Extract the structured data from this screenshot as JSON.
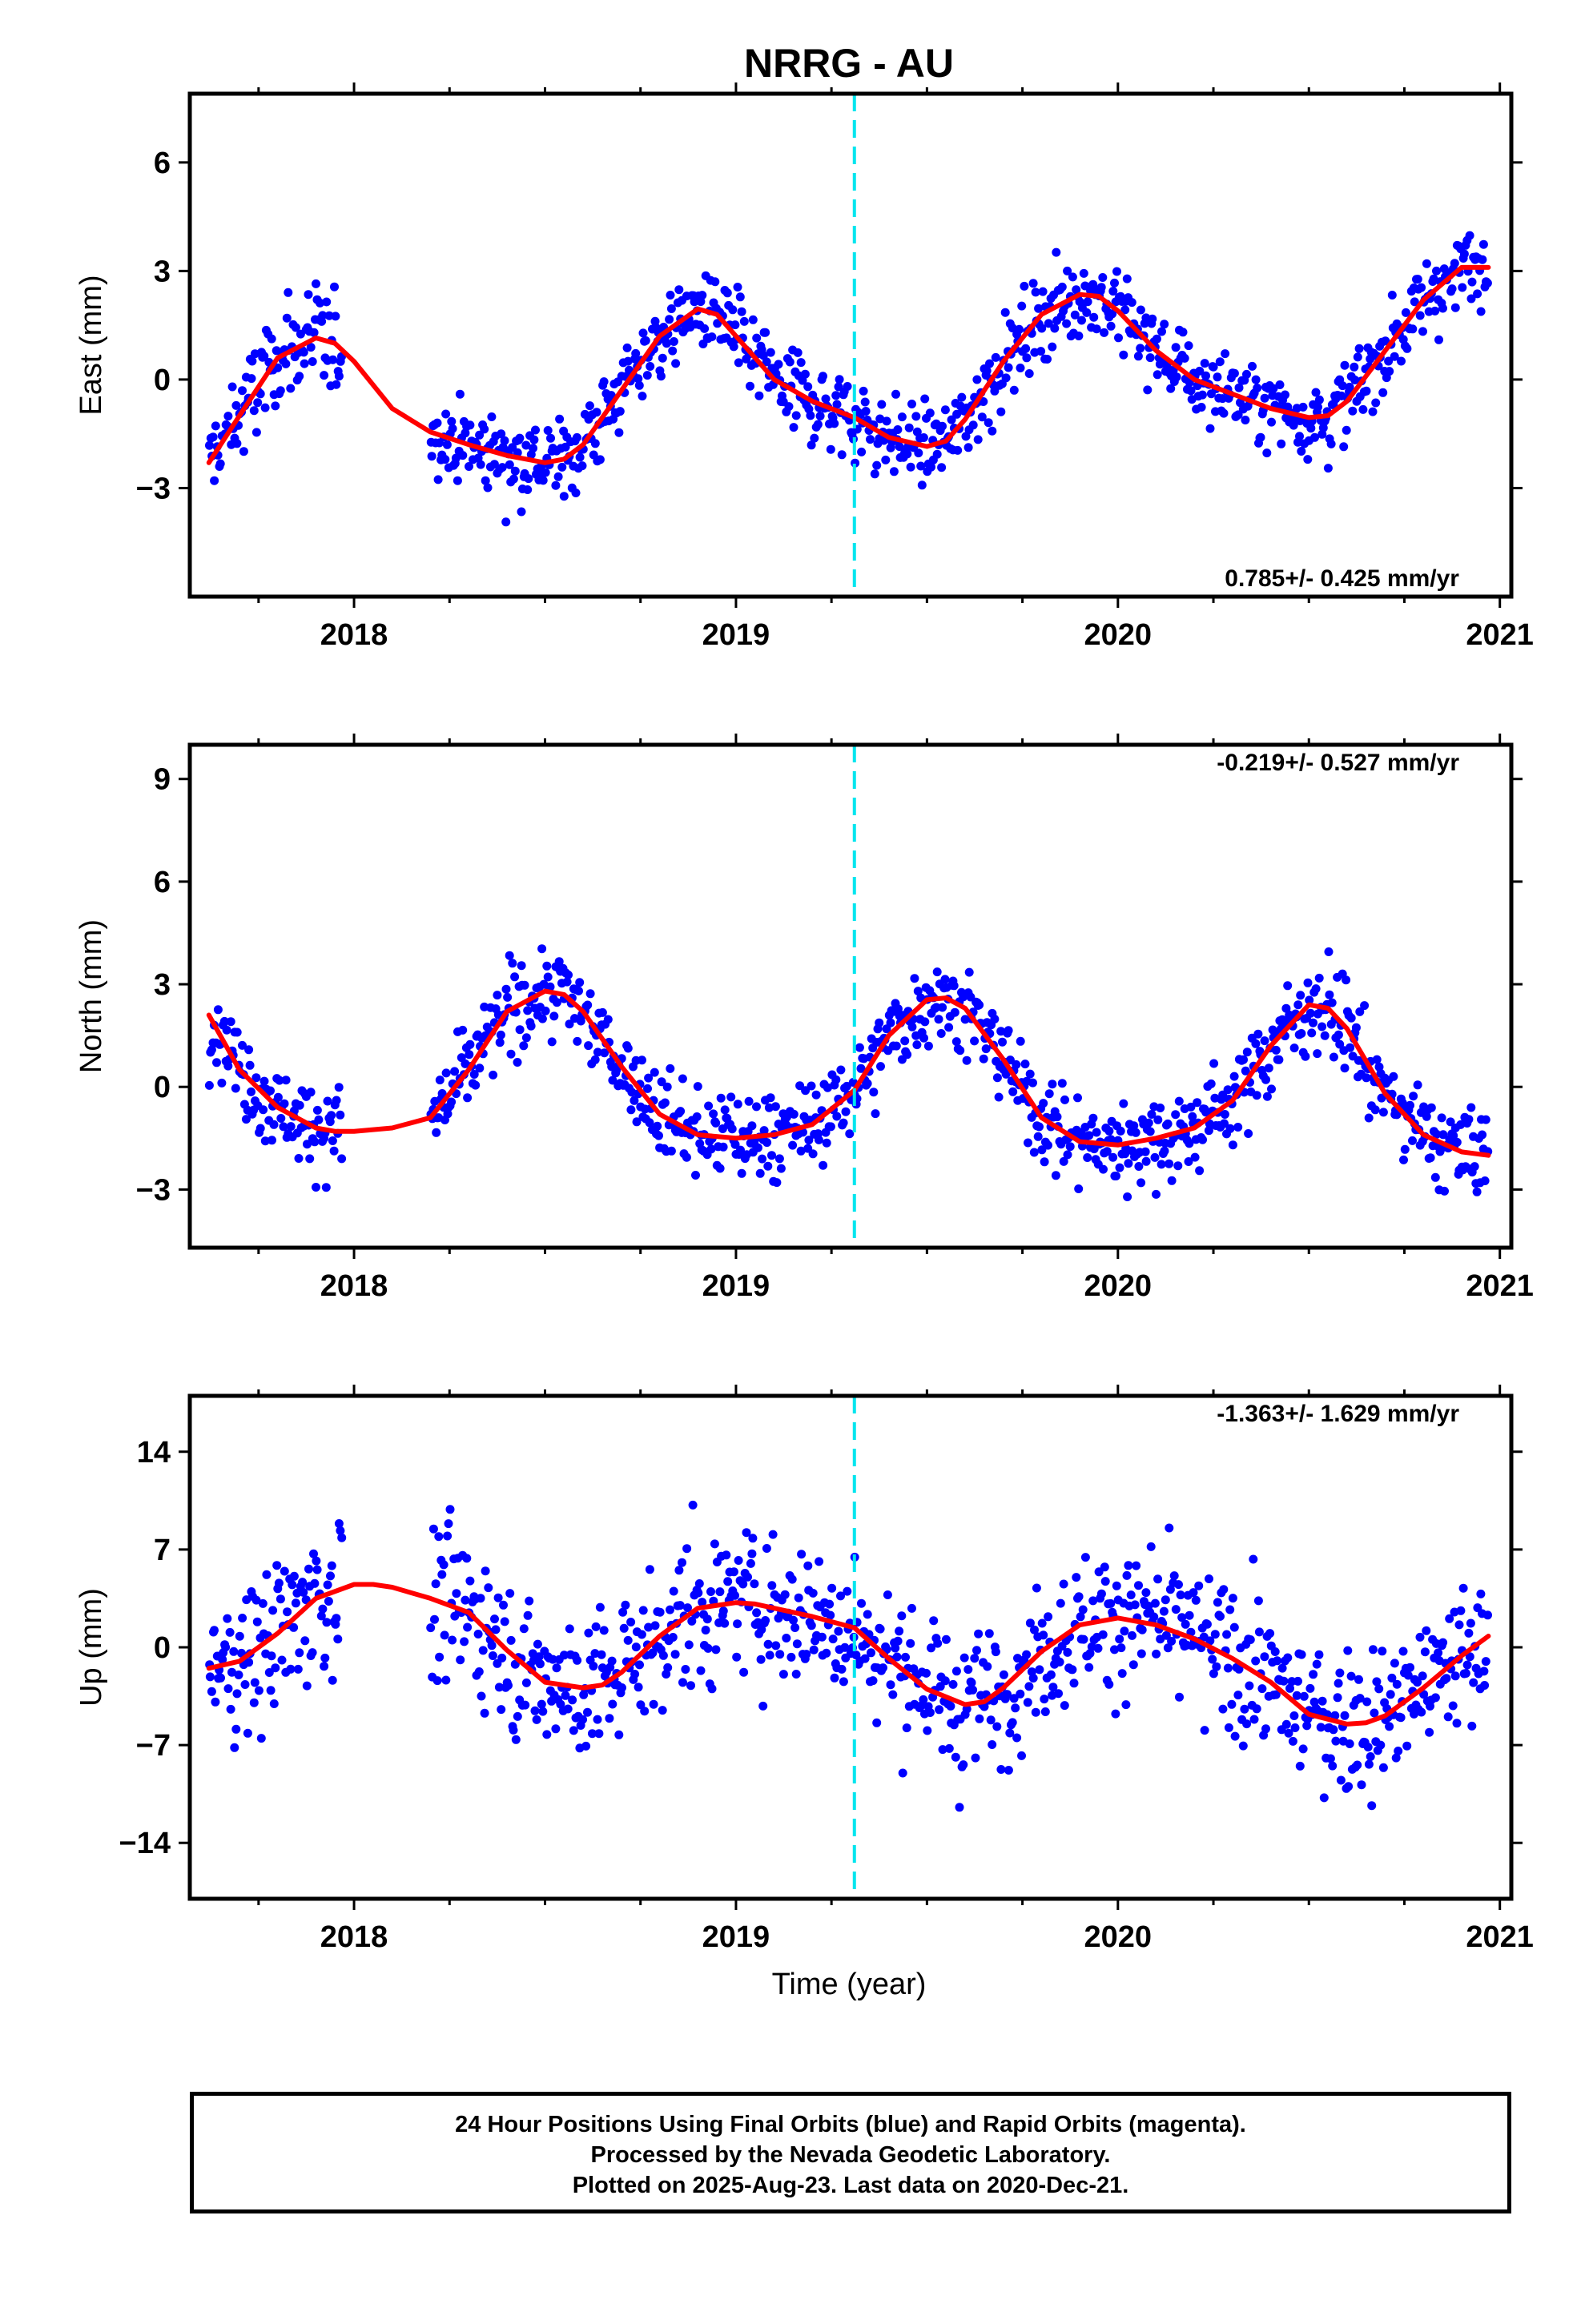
{
  "title": "NRRG - AU",
  "xlabel": "Time (year)",
  "caption": [
    "24 Hour Positions Using Final Orbits (blue) and Rapid Orbits (magenta).",
    "Processed by the Nevada Geodetic Laboratory.",
    "Plotted on 2025-Aug-23. Last data on 2020-Dec-21."
  ],
  "colors": {
    "final_orbits": "#0000ff",
    "fit": "#ff0000",
    "event_line": "#00e5ee",
    "frame": "#000000"
  },
  "chart_data": [
    {
      "type": "scatter",
      "ylabel": "East (mm)",
      "rate_label": "0.785+/- 0.425 mm/yr",
      "xlim": [
        2017.57,
        2021.03
      ],
      "ylim": [
        -6.0,
        7.9
      ],
      "x_ticks": [
        2018,
        2019,
        2020,
        2021
      ],
      "y_ticks": [
        -3,
        0,
        3,
        6
      ],
      "event_line_x": 2019.31,
      "fit": {
        "x": [
          2017.62,
          2017.7,
          2017.8,
          2017.9,
          2017.95,
          2018.0,
          2018.1,
          2018.2,
          2018.3,
          2018.4,
          2018.5,
          2018.55,
          2018.6,
          2018.7,
          2018.8,
          2018.9,
          2018.95,
          2019.0,
          2019.1,
          2019.2,
          2019.31,
          2019.4,
          2019.5,
          2019.55,
          2019.6,
          2019.7,
          2019.8,
          2019.9,
          2019.95,
          2020.0,
          2020.1,
          2020.2,
          2020.3,
          2020.4,
          2020.5,
          2020.55,
          2020.6,
          2020.7,
          2020.8,
          2020.9,
          2020.97
        ],
        "y": [
          -2.3,
          -1.0,
          0.6,
          1.15,
          1.0,
          0.5,
          -0.8,
          -1.45,
          -1.8,
          -2.1,
          -2.3,
          -2.2,
          -1.8,
          -0.3,
          1.2,
          1.95,
          1.8,
          1.2,
          0.0,
          -0.6,
          -1.05,
          -1.6,
          -1.85,
          -1.7,
          -1.1,
          0.5,
          1.8,
          2.35,
          2.3,
          1.9,
          0.8,
          0.0,
          -0.4,
          -0.8,
          -1.05,
          -1.0,
          -0.6,
          0.8,
          2.2,
          3.1,
          3.1
        ]
      },
      "series": [
        {
          "name": "Final Orbits",
          "segments": [
            {
              "x0": 2017.62,
              "x1": 2017.97,
              "lo": -4.0,
              "hi": 4.4,
              "noise": 1.0
            },
            {
              "x0": 2018.2,
              "x1": 2019.31,
              "lo": -6.0,
              "hi": 5.7,
              "noise": 0.85
            },
            {
              "x0": 2019.31,
              "x1": 2020.97,
              "lo": -6.0,
              "hi": 7.6,
              "noise": 0.8
            }
          ]
        }
      ]
    },
    {
      "type": "scatter",
      "ylabel": "North (mm)",
      "rate_label": "-0.219+/- 0.527 mm/yr",
      "xlim": [
        2017.57,
        2021.03
      ],
      "ylim": [
        -4.7,
        10.0
      ],
      "x_ticks": [
        2018,
        2019,
        2020,
        2021
      ],
      "y_ticks": [
        -3,
        0,
        3,
        6,
        9
      ],
      "event_line_x": 2019.31,
      "fit": {
        "x": [
          2017.62,
          2017.7,
          2017.8,
          2017.9,
          2017.95,
          2018.0,
          2018.1,
          2018.2,
          2018.3,
          2018.4,
          2018.5,
          2018.55,
          2018.6,
          2018.7,
          2018.8,
          2018.9,
          2019.0,
          2019.1,
          2019.2,
          2019.31,
          2019.4,
          2019.5,
          2019.55,
          2019.6,
          2019.7,
          2019.8,
          2019.9,
          2020.0,
          2020.1,
          2020.2,
          2020.3,
          2020.4,
          2020.5,
          2020.55,
          2020.6,
          2020.7,
          2020.8,
          2020.9,
          2020.97
        ],
        "y": [
          2.1,
          0.5,
          -0.6,
          -1.2,
          -1.3,
          -1.3,
          -1.2,
          -0.9,
          0.5,
          2.2,
          2.8,
          2.7,
          2.2,
          0.6,
          -0.8,
          -1.4,
          -1.5,
          -1.4,
          -1.1,
          -0.1,
          1.5,
          2.55,
          2.6,
          2.3,
          0.8,
          -0.9,
          -1.6,
          -1.7,
          -1.5,
          -1.2,
          -0.4,
          1.2,
          2.4,
          2.3,
          1.7,
          -0.2,
          -1.4,
          -1.9,
          -2.0
        ]
      },
      "series": [
        {
          "name": "Final Orbits",
          "segments": [
            {
              "x0": 2017.62,
              "x1": 2017.97,
              "lo": -4.7,
              "hi": 4.2,
              "noise": 0.9
            },
            {
              "x0": 2018.2,
              "x1": 2019.31,
              "lo": -4.7,
              "hi": 7.0,
              "noise": 0.9
            },
            {
              "x0": 2019.31,
              "x1": 2020.97,
              "lo": -4.7,
              "hi": 9.7,
              "noise": 0.9
            }
          ]
        }
      ]
    },
    {
      "type": "scatter",
      "ylabel": "Up (mm)",
      "rate_label": "-1.363+/- 1.629 mm/yr",
      "xlim": [
        2017.57,
        2021.03
      ],
      "ylim": [
        -18,
        18
      ],
      "x_ticks": [
        2018,
        2019,
        2020,
        2021
      ],
      "y_ticks": [
        -14,
        -7,
        0,
        7,
        14
      ],
      "event_line_x": 2019.31,
      "fit": {
        "x": [
          2017.62,
          2017.7,
          2017.8,
          2017.9,
          2018.0,
          2018.05,
          2018.1,
          2018.2,
          2018.3,
          2018.4,
          2018.5,
          2018.6,
          2018.65,
          2018.7,
          2018.8,
          2018.9,
          2019.0,
          2019.05,
          2019.1,
          2019.2,
          2019.31,
          2019.4,
          2019.5,
          2019.6,
          2019.65,
          2019.7,
          2019.8,
          2019.9,
          2020.0,
          2020.1,
          2020.2,
          2020.3,
          2020.4,
          2020.5,
          2020.6,
          2020.65,
          2020.7,
          2020.8,
          2020.9,
          2020.97
        ],
        "y": [
          -1.5,
          -1.0,
          1.0,
          3.5,
          4.5,
          4.5,
          4.3,
          3.5,
          2.5,
          -0.2,
          -2.5,
          -2.9,
          -2.7,
          -1.8,
          0.8,
          2.8,
          3.2,
          3.1,
          2.8,
          2.2,
          1.4,
          -0.8,
          -3.0,
          -4.1,
          -3.9,
          -2.9,
          -0.3,
          1.6,
          2.1,
          1.6,
          0.6,
          -0.8,
          -2.5,
          -4.8,
          -5.5,
          -5.4,
          -4.9,
          -2.9,
          -0.6,
          0.8
        ]
      },
      "series": [
        {
          "name": "Final Orbits",
          "segments": [
            {
              "x0": 2017.62,
              "x1": 2017.97,
              "lo": -16.0,
              "hi": 9.5,
              "noise": 4.0
            },
            {
              "x0": 2018.2,
              "x1": 2019.31,
              "lo": -9.5,
              "hi": 18.0,
              "noise": 3.8
            },
            {
              "x0": 2019.31,
              "x1": 2020.97,
              "lo": -17.5,
              "hi": 18.0,
              "noise": 3.6
            }
          ]
        }
      ]
    }
  ]
}
